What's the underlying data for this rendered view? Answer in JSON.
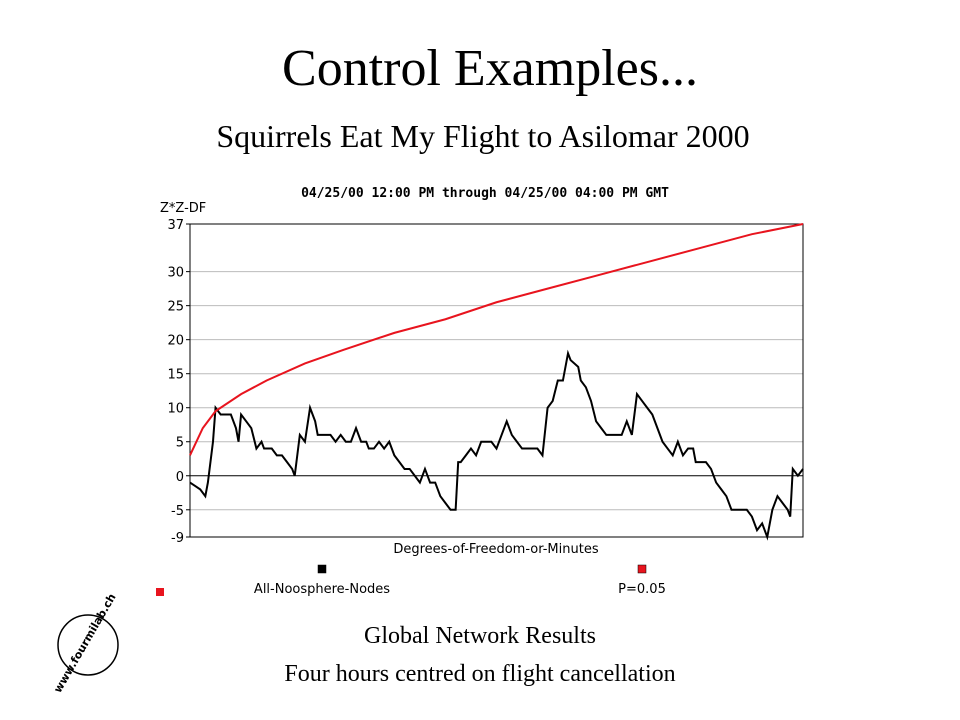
{
  "slide": {
    "title": "Control Examples...",
    "subtitle": "Squirrels Eat My Flight to Asilomar 2000",
    "caption": [
      "Global Network Results",
      "Four hours centred on flight cancellation"
    ],
    "logo": "www.fourmilab.ch"
  },
  "chart_data": {
    "type": "line",
    "title": "04/25/00 12:00 PM through 04/25/00 04:00 PM GMT",
    "ylabel": "Z*Z-DF",
    "xlabel": "Degrees-of-Freedom-or-Minutes",
    "xlim": [
      0,
      240
    ],
    "ylim": [
      -9,
      37
    ],
    "yticks": [
      -9,
      -5,
      0,
      5,
      10,
      15,
      20,
      25,
      30,
      37
    ],
    "grid": true,
    "series": [
      {
        "name": "All-Noosphere-Nodes",
        "color": "#000000",
        "x": [
          0,
          2,
          4,
          6,
          7,
          9,
          10,
          12,
          14,
          16,
          18,
          19,
          20,
          22,
          24,
          26,
          28,
          29,
          32,
          34,
          36,
          38,
          40,
          41,
          43,
          45,
          47,
          49,
          50,
          53,
          55,
          57,
          59,
          61,
          63,
          65,
          67,
          69,
          70,
          72,
          74,
          76,
          78,
          80,
          82,
          84,
          86,
          88,
          90,
          92,
          94,
          96,
          98,
          100,
          102,
          104,
          105,
          106,
          108,
          110,
          112,
          114,
          116,
          118,
          120,
          122,
          124,
          126,
          128,
          130,
          132,
          134,
          136,
          138,
          140,
          142,
          144,
          146,
          148,
          149,
          152,
          153,
          155,
          157,
          159,
          161,
          163,
          165,
          167,
          169,
          171,
          173,
          175,
          177,
          179,
          181,
          183,
          185,
          187,
          189,
          191,
          193,
          195,
          197,
          198,
          200,
          202,
          204,
          206,
          208,
          210,
          212,
          214,
          216,
          218,
          220,
          222,
          224,
          226,
          228,
          230,
          232,
          234,
          235,
          236,
          238,
          240
        ],
        "values": [
          -1,
          -1.5,
          -2,
          -3,
          -1,
          5,
          10,
          9,
          9,
          9,
          7,
          5,
          9,
          8,
          7,
          4,
          5,
          4,
          4,
          3,
          3,
          2,
          1,
          0,
          6,
          5,
          10,
          8,
          6,
          6,
          6,
          5,
          6,
          5,
          5,
          7,
          5,
          5,
          4,
          4,
          5,
          4,
          5,
          3,
          2,
          1,
          1,
          0,
          -1,
          1,
          -1,
          -1,
          -3,
          -4,
          -5,
          -5,
          2,
          2,
          3,
          4,
          3,
          5,
          5,
          5,
          4,
          6,
          8,
          6,
          5,
          4,
          4,
          4,
          4,
          3,
          10,
          11,
          14,
          14,
          18,
          17,
          16,
          14,
          13,
          11,
          8,
          7,
          6,
          6,
          6,
          6,
          8,
          6,
          12,
          11,
          10,
          9,
          7,
          5,
          4,
          3,
          5,
          3,
          4,
          4,
          2,
          2,
          2,
          1,
          -1,
          -2,
          -3,
          -5,
          -5,
          -5,
          -5,
          -6,
          -8,
          -7,
          -9,
          -5,
          -3,
          -4,
          -5,
          -6,
          1,
          0,
          1
        ]
      },
      {
        "name": "P=0.05",
        "color": "#e8141e",
        "x": [
          0,
          5,
          10,
          20,
          30,
          45,
          60,
          80,
          100,
          120,
          140,
          160,
          180,
          200,
          220,
          240
        ],
        "values": [
          3,
          7,
          9.5,
          12,
          14,
          16.5,
          18.5,
          21,
          23,
          25.5,
          27.5,
          29.5,
          31.5,
          33.5,
          35.5,
          37
        ]
      }
    ]
  }
}
